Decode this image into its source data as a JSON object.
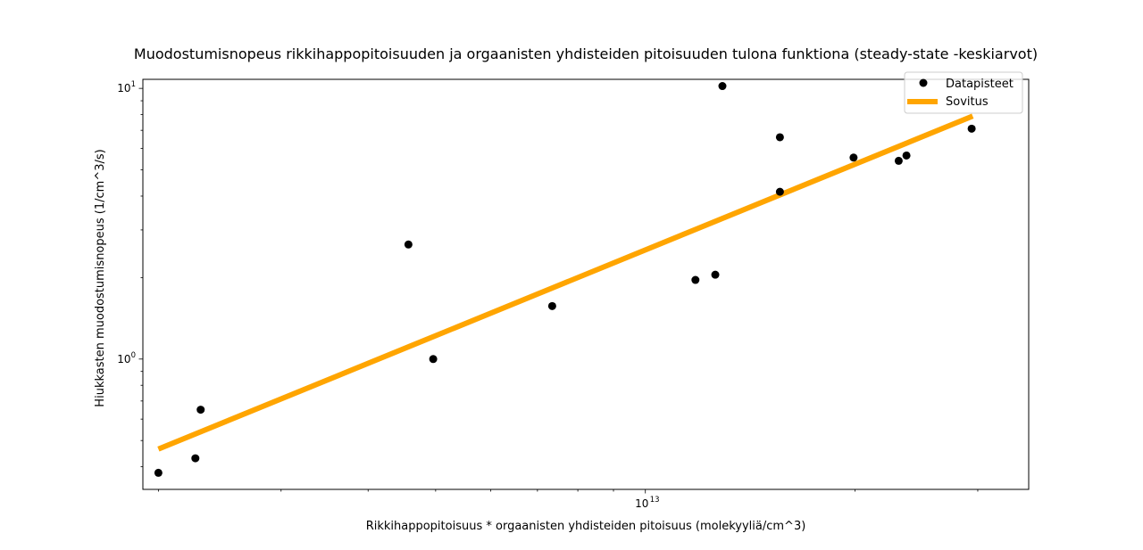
{
  "chart_data": {
    "type": "scatter",
    "title": "Muodostumisnopeus rikkihappopitoisuuden ja orgaanisten yhdisteiden pitoisuuden tulona funktiona (steady-state -keskiarvot)",
    "xlabel": "Rikkihappopitoisuus * orgaanisten yhdisteiden pitoisuus (molekyyliä/cm^3)",
    "ylabel": "Hiukkasten muodostumisnopeus (1/cm^3/s)",
    "xscale": "log",
    "yscale": "log",
    "xlim": [
      1900000000000.0,
      35500000000000.0
    ],
    "ylim": [
      0.33,
      10.8
    ],
    "x_major_tick": {
      "value": 10000000000000.0,
      "base": "10",
      "exponent": "13"
    },
    "y_major_ticks": [
      {
        "value": 1,
        "base": "10",
        "exponent": "0"
      },
      {
        "value": 10,
        "base": "10",
        "exponent": "1"
      }
    ],
    "grid": false,
    "legend_position": "top-right",
    "series": [
      {
        "name": "Datapisteet",
        "style": "markers",
        "color": "#000000",
        "x": [
          2000000000000.0,
          2260000000000.0,
          2300000000000.0,
          4570000000000.0,
          4960000000000.0,
          7350000000000.0,
          11800000000000.0,
          12600000000000.0,
          12900000000000.0,
          15600000000000.0,
          15600000000000.0,
          19900000000000.0,
          23100000000000.0,
          23700000000000.0,
          29400000000000.0
        ],
        "y": [
          0.38,
          0.43,
          0.65,
          2.65,
          1.0,
          1.57,
          1.96,
          2.05,
          10.2,
          6.6,
          4.15,
          5.55,
          5.4,
          5.65,
          7.1
        ]
      },
      {
        "name": "Sovitus",
        "style": "line",
        "color": "#FFA500",
        "x": [
          2000000000000.0,
          29500000000000.0
        ],
        "y": [
          0.465,
          7.9
        ]
      }
    ]
  }
}
